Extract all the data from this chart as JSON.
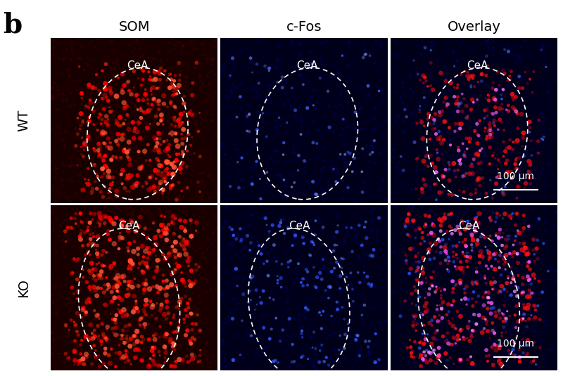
{
  "title_label": "b",
  "col_labels": [
    "SOM",
    "c-Fos",
    "Overlay"
  ],
  "row_labels": [
    "WT",
    "KO"
  ],
  "scalebar_text": "100 μm",
  "cea_label": "CeA",
  "fig_bg": "#ffffff",
  "title_fontsize": 28,
  "col_label_fontsize": 14,
  "row_label_fontsize": 14,
  "cea_fontsize": 11,
  "scalebar_fontsize": 10,
  "seed": 42
}
